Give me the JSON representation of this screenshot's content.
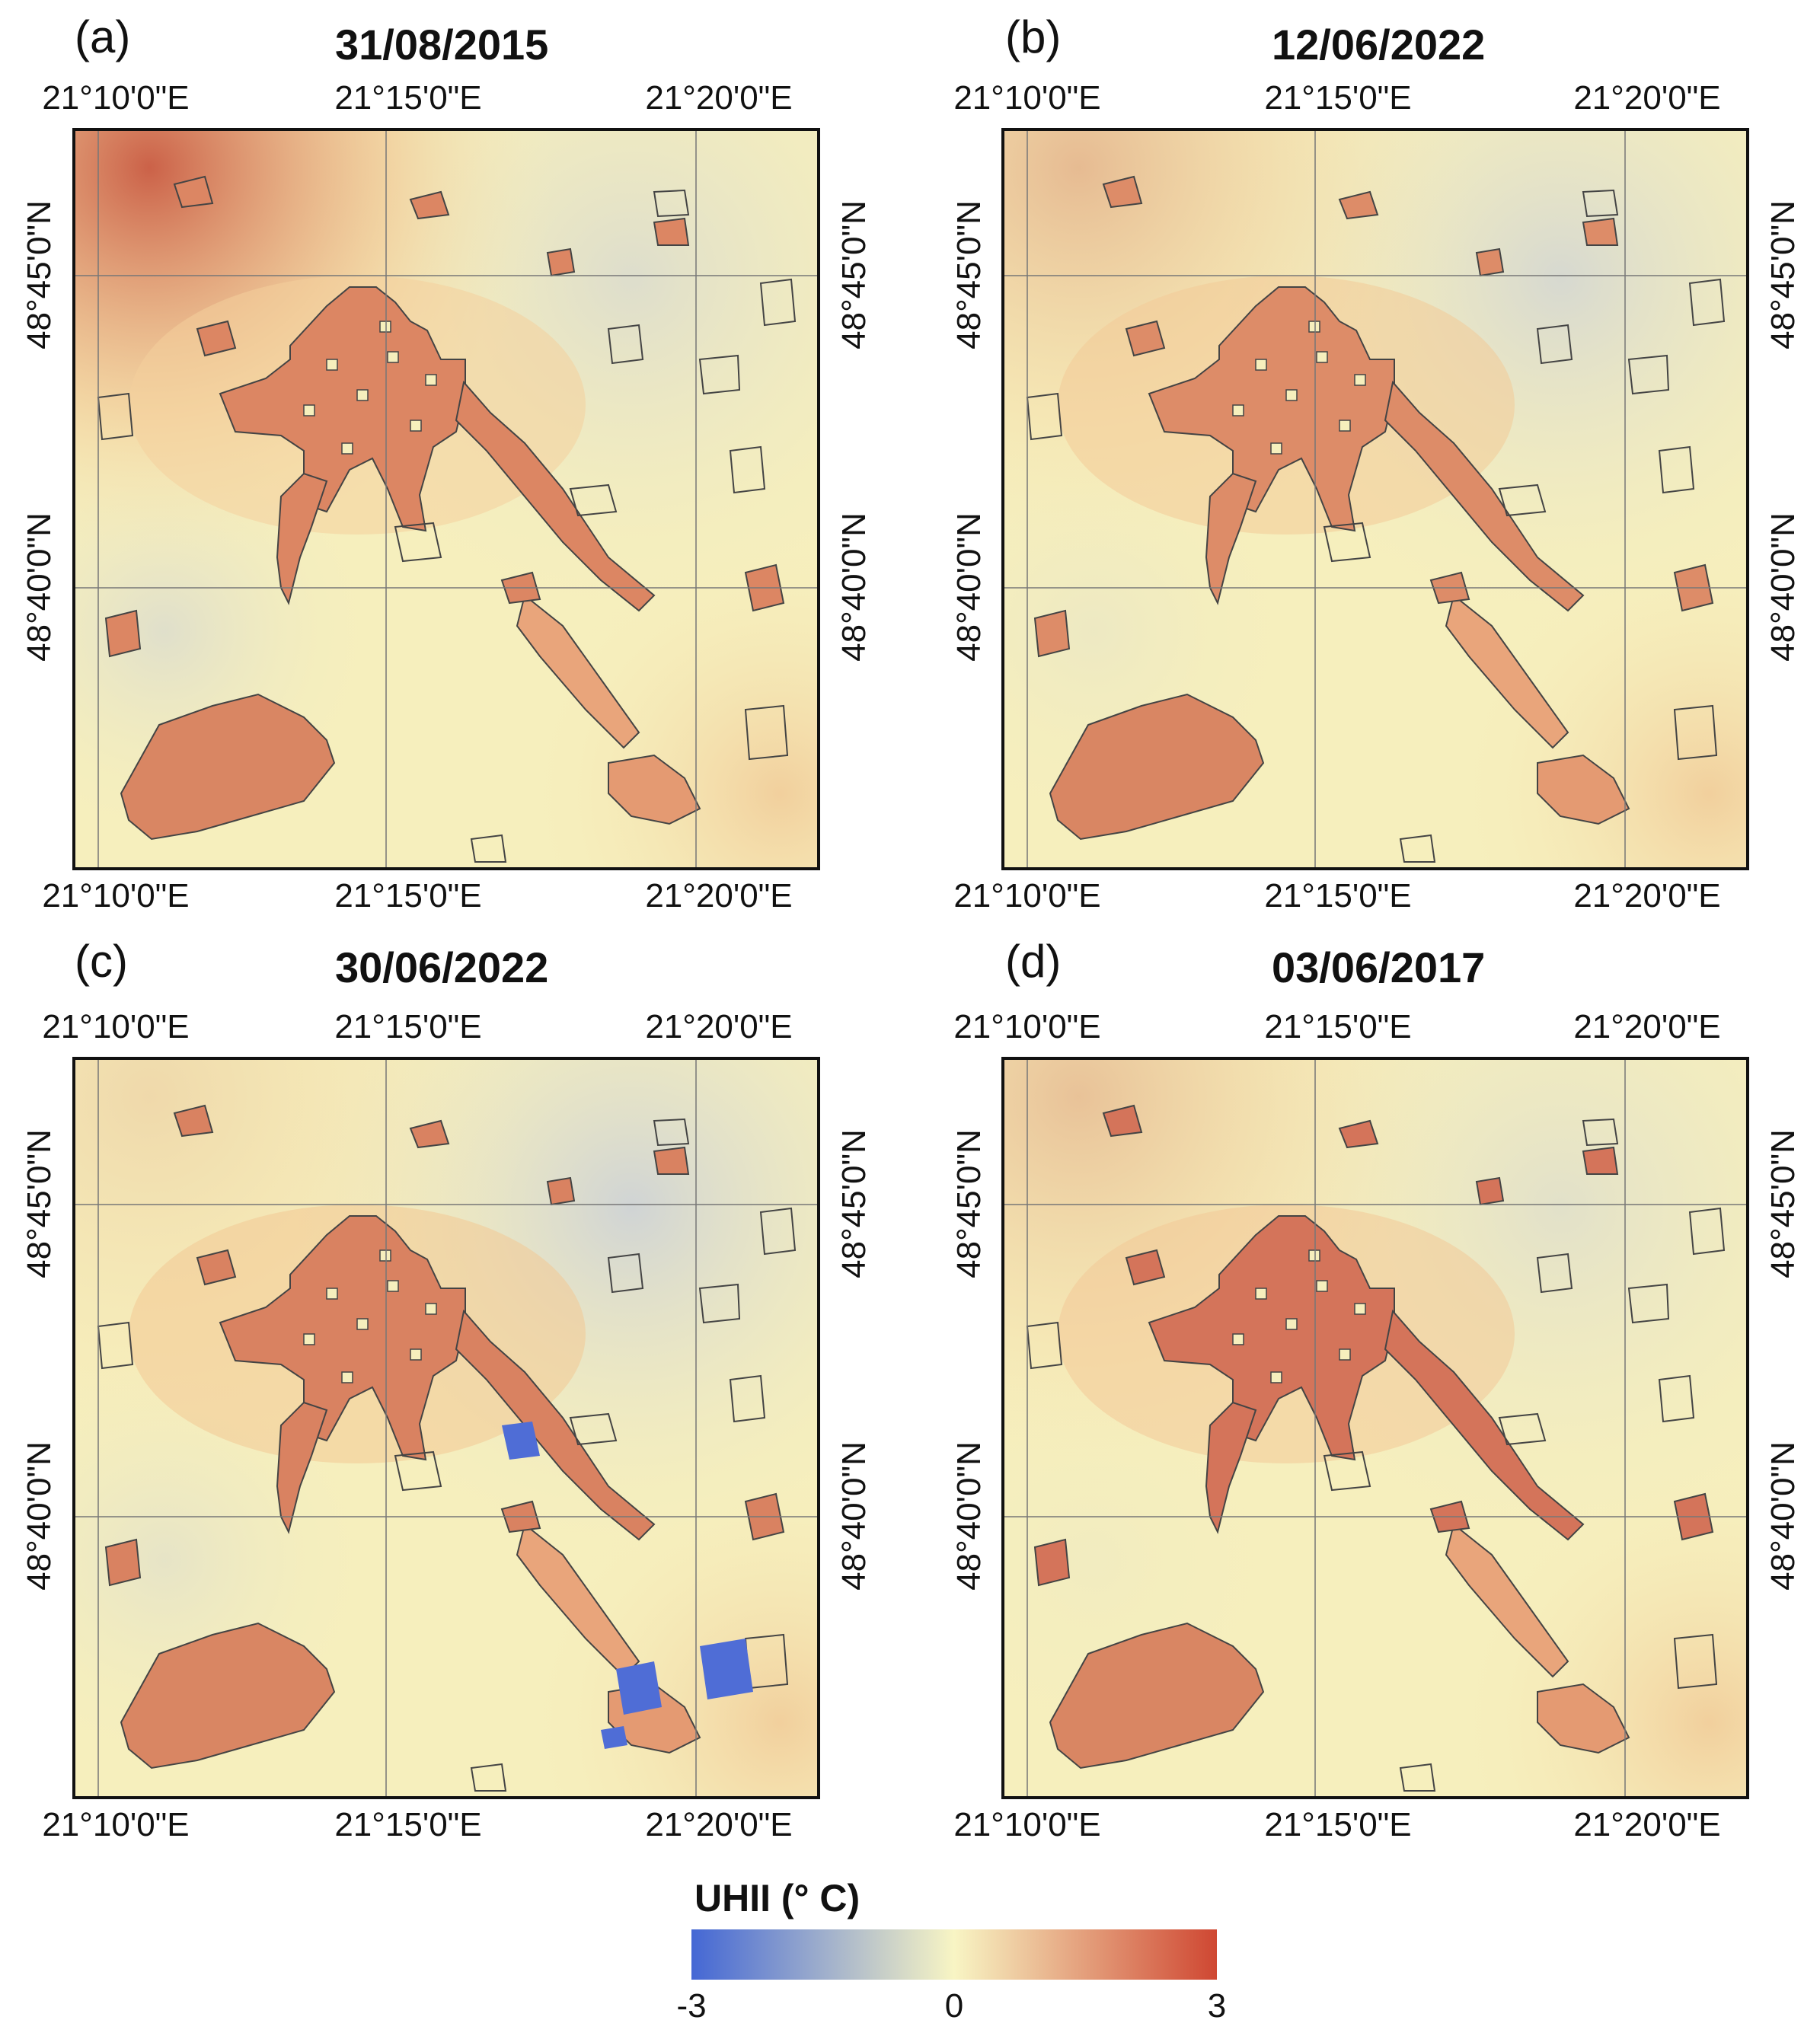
{
  "figure": {
    "panels": [
      {
        "letter": "(a)",
        "date": "31/08/2015",
        "variant": "a"
      },
      {
        "letter": "(b)",
        "date": "12/06/2022",
        "variant": "b"
      },
      {
        "letter": "(c)",
        "date": "30/06/2022",
        "variant": "c"
      },
      {
        "letter": "(d)",
        "date": "03/06/2017",
        "variant": "d"
      }
    ],
    "lon_ticks": [
      "21°10'0\"E",
      "21°15'0\"E",
      "21°20'0\"E"
    ],
    "lat_ticks": [
      "48°45'0\"N",
      "48°40'0\"N"
    ],
    "legend": {
      "title": "UHII (° C)",
      "min_label": "-3",
      "mid_label": "0",
      "max_label": "3",
      "colors": [
        "#4467d4",
        "#f8f5c4",
        "#cf4732"
      ]
    },
    "colors": {
      "cool": "#c9cfd9",
      "neutral": "#f6efbd",
      "warm": "#f0c28f",
      "urban": "#dc8663",
      "hot": "#c95a42",
      "blue": "#4f6dd6",
      "outline": "#444444"
    }
  }
}
